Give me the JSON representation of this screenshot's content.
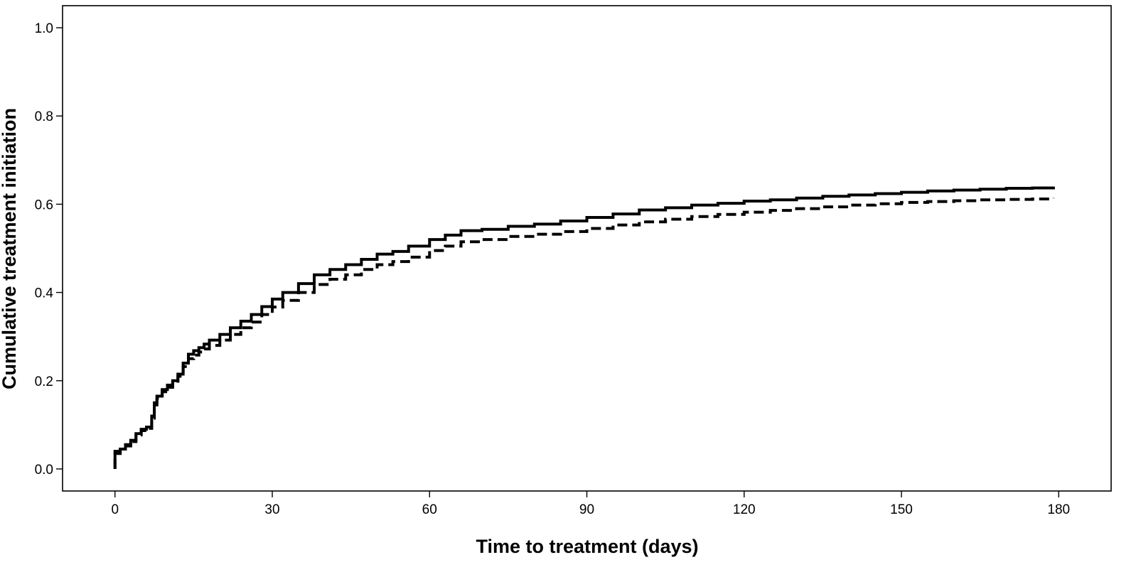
{
  "chart_data": {
    "type": "line",
    "title": "",
    "xlabel": "Time to treatment (days)",
    "ylabel": "Cumulative treatment initiation",
    "xlim": [
      -10,
      190
    ],
    "ylim": [
      -0.05,
      1.05
    ],
    "x_ticks": [
      0,
      30,
      60,
      90,
      120,
      150,
      180
    ],
    "x_tick_labels": [
      "0",
      "30",
      "60",
      "90",
      "120",
      "150",
      "180"
    ],
    "y_ticks": [
      0.0,
      0.2,
      0.4,
      0.6,
      0.8,
      1.0
    ],
    "y_tick_labels": [
      "0.0",
      "0.2",
      "0.4",
      "0.6",
      "0.8",
      "1.0"
    ],
    "grid": false,
    "legend": "none",
    "step": true,
    "series": [
      {
        "line_style": "solid",
        "color": "#000000",
        "points": [
          [
            0,
            0.0
          ],
          [
            0,
            0.04
          ],
          [
            1,
            0.045
          ],
          [
            2,
            0.055
          ],
          [
            3,
            0.065
          ],
          [
            4,
            0.08
          ],
          [
            5,
            0.09
          ],
          [
            6,
            0.095
          ],
          [
            7,
            0.12
          ],
          [
            7.5,
            0.15
          ],
          [
            8,
            0.165
          ],
          [
            9,
            0.18
          ],
          [
            10,
            0.19
          ],
          [
            11,
            0.2
          ],
          [
            12,
            0.215
          ],
          [
            13,
            0.24
          ],
          [
            14,
            0.26
          ],
          [
            15,
            0.268
          ],
          [
            16,
            0.275
          ],
          [
            17,
            0.283
          ],
          [
            18,
            0.292
          ],
          [
            20,
            0.305
          ],
          [
            22,
            0.32
          ],
          [
            24,
            0.335
          ],
          [
            26,
            0.35
          ],
          [
            28,
            0.368
          ],
          [
            30,
            0.385
          ],
          [
            32,
            0.4
          ],
          [
            35,
            0.42
          ],
          [
            38,
            0.44
          ],
          [
            41,
            0.452
          ],
          [
            44,
            0.463
          ],
          [
            47,
            0.475
          ],
          [
            50,
            0.487
          ],
          [
            53,
            0.493
          ],
          [
            56,
            0.505
          ],
          [
            60,
            0.52
          ],
          [
            63,
            0.53
          ],
          [
            66,
            0.54
          ],
          [
            70,
            0.543
          ],
          [
            75,
            0.55
          ],
          [
            80,
            0.555
          ],
          [
            85,
            0.562
          ],
          [
            90,
            0.57
          ],
          [
            95,
            0.578
          ],
          [
            100,
            0.587
          ],
          [
            105,
            0.592
          ],
          [
            110,
            0.598
          ],
          [
            115,
            0.602
          ],
          [
            120,
            0.607
          ],
          [
            125,
            0.61
          ],
          [
            130,
            0.614
          ],
          [
            135,
            0.618
          ],
          [
            140,
            0.621
          ],
          [
            145,
            0.624
          ],
          [
            150,
            0.627
          ],
          [
            155,
            0.63
          ],
          [
            160,
            0.632
          ],
          [
            165,
            0.634
          ],
          [
            170,
            0.636
          ],
          [
            175,
            0.637
          ],
          [
            179,
            0.64
          ]
        ]
      },
      {
        "line_style": "dashed",
        "color": "#000000",
        "points": [
          [
            0,
            0.0
          ],
          [
            0,
            0.035
          ],
          [
            1,
            0.042
          ],
          [
            2,
            0.052
          ],
          [
            3,
            0.062
          ],
          [
            4,
            0.077
          ],
          [
            5,
            0.087
          ],
          [
            6,
            0.092
          ],
          [
            7,
            0.115
          ],
          [
            7.5,
            0.145
          ],
          [
            8,
            0.16
          ],
          [
            9,
            0.175
          ],
          [
            10,
            0.185
          ],
          [
            11,
            0.195
          ],
          [
            12,
            0.21
          ],
          [
            13,
            0.232
          ],
          [
            14,
            0.25
          ],
          [
            15,
            0.258
          ],
          [
            16,
            0.265
          ],
          [
            17,
            0.272
          ],
          [
            18,
            0.28
          ],
          [
            20,
            0.292
          ],
          [
            22,
            0.305
          ],
          [
            24,
            0.32
          ],
          [
            26,
            0.333
          ],
          [
            28,
            0.35
          ],
          [
            30,
            0.367
          ],
          [
            32,
            0.382
          ],
          [
            35,
            0.4
          ],
          [
            38,
            0.418
          ],
          [
            41,
            0.43
          ],
          [
            44,
            0.44
          ],
          [
            47,
            0.452
          ],
          [
            50,
            0.463
          ],
          [
            53,
            0.47
          ],
          [
            56,
            0.48
          ],
          [
            60,
            0.495
          ],
          [
            63,
            0.505
          ],
          [
            66,
            0.515
          ],
          [
            70,
            0.52
          ],
          [
            75,
            0.527
          ],
          [
            80,
            0.532
          ],
          [
            85,
            0.538
          ],
          [
            90,
            0.545
          ],
          [
            95,
            0.553
          ],
          [
            100,
            0.56
          ],
          [
            105,
            0.566
          ],
          [
            110,
            0.572
          ],
          [
            115,
            0.577
          ],
          [
            120,
            0.582
          ],
          [
            125,
            0.586
          ],
          [
            130,
            0.59
          ],
          [
            135,
            0.594
          ],
          [
            140,
            0.598
          ],
          [
            145,
            0.601
          ],
          [
            150,
            0.604
          ],
          [
            155,
            0.606
          ],
          [
            160,
            0.608
          ],
          [
            165,
            0.61
          ],
          [
            170,
            0.611
          ],
          [
            175,
            0.612
          ],
          [
            179,
            0.614
          ]
        ]
      }
    ]
  }
}
